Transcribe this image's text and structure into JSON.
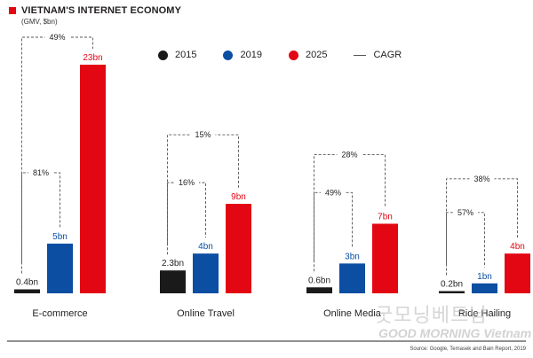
{
  "header": {
    "title": "VIETNAM'S INTERNET ECONOMY",
    "subtitle": "(GMV, $bn)",
    "accent_color": "#e30613"
  },
  "legend": {
    "items": [
      {
        "label": "2015",
        "color": "#1a1a1a"
      },
      {
        "label": "2019",
        "color": "#0b4ea2"
      },
      {
        "label": "2025",
        "color": "#e30613"
      }
    ],
    "cagr_label": "CAGR"
  },
  "source": "Source: Google, Temasek and Bain Report, 2019",
  "watermark": {
    "line1": "굿모닝베트남",
    "line2": "GOOD MORNING Vietnam"
  },
  "chart_data": {
    "type": "bar",
    "title": "VIETNAM'S INTERNET ECONOMY",
    "subtitle": "(GMV, $bn)",
    "categories": [
      "E-commerce",
      "Online Travel",
      "Online Media",
      "Ride Hailing"
    ],
    "series": [
      {
        "name": "2015",
        "color": "#1a1a1a",
        "values": [
          0.4,
          2.3,
          0.6,
          0.2
        ],
        "labels": [
          "0.4bn",
          "2.3bn",
          "0.6bn",
          "0.2bn"
        ]
      },
      {
        "name": "2019",
        "color": "#0b4ea2",
        "values": [
          5,
          4,
          3,
          1
        ],
        "labels": [
          "5bn",
          "4bn",
          "3bn",
          "1bn"
        ]
      },
      {
        "name": "2025",
        "color": "#e30613",
        "values": [
          23,
          9,
          7,
          4
        ],
        "labels": [
          "23bn",
          "9bn",
          "7bn",
          "4bn"
        ]
      }
    ],
    "cagr": [
      {
        "category": "E-commerce",
        "2015_2019": "81%",
        "2015_2025": "49%"
      },
      {
        "category": "Online Travel",
        "2015_2019": "16%",
        "2015_2025": "15%"
      },
      {
        "category": "Online Media",
        "2015_2019": "49%",
        "2015_2025": "28%"
      },
      {
        "category": "Ride Hailing",
        "2015_2019": "57%",
        "2015_2025": "38%"
      }
    ],
    "legend_position": "top-center",
    "grid": false,
    "ylim": [
      0,
      23
    ],
    "xlabel": "",
    "ylabel": ""
  }
}
